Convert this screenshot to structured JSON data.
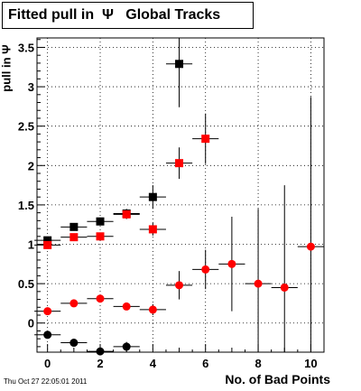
{
  "title": "Fitted pull in  Ψ   Global Tracks",
  "ylabel": "pull in Ψ",
  "xlabel": "No. of Bad Points",
  "timestamp": "Thu Oct 27 22:05:01 2011",
  "chart_data": {
    "type": "scatter",
    "title": "Fitted pull in  Ψ   Global Tracks",
    "xlabel": "No. of Bad Points",
    "ylabel": "pull in Ψ",
    "xlim": [
      -0.4,
      10.5
    ],
    "ylim": [
      -0.37,
      3.62
    ],
    "xticks": [
      0,
      2,
      4,
      6,
      8,
      10
    ],
    "yticks": [
      0,
      0.5,
      1,
      1.5,
      2,
      2.5,
      3,
      3.5
    ],
    "grid": true,
    "series": [
      {
        "marker": "square",
        "color": "#000000",
        "points": [
          {
            "x": 0,
            "y": 1.05,
            "xerr": 0.5,
            "yerr": 0.02
          },
          {
            "x": 1,
            "y": 1.22,
            "xerr": 0.5,
            "yerr": 0.03
          },
          {
            "x": 2,
            "y": 1.29,
            "xerr": 0.5,
            "yerr": 0.04
          },
          {
            "x": 3,
            "y": 1.39,
            "xerr": 0.5,
            "yerr": 0.06
          },
          {
            "x": 4,
            "y": 1.6,
            "xerr": 0.5,
            "yerr": 0.15
          },
          {
            "x": 5,
            "y": 3.29,
            "xerr": 0.5,
            "yerr": 0.55
          }
        ]
      },
      {
        "marker": "square",
        "color": "#ff0000",
        "points": [
          {
            "x": 0,
            "y": 0.99,
            "xerr": 0.5,
            "yerr": 0.02
          },
          {
            "x": 1,
            "y": 1.09,
            "xerr": 0.5,
            "yerr": 0.02
          },
          {
            "x": 2,
            "y": 1.1,
            "xerr": 0.5,
            "yerr": 0.03
          },
          {
            "x": 3,
            "y": 1.38,
            "xerr": 0.5,
            "yerr": 0.06
          },
          {
            "x": 4,
            "y": 1.19,
            "xerr": 0.5,
            "yerr": 0.08
          },
          {
            "x": 5,
            "y": 2.03,
            "xerr": 0.5,
            "yerr": 0.2
          },
          {
            "x": 6,
            "y": 2.34,
            "xerr": 0.5,
            "yerr": 0.32
          }
        ]
      },
      {
        "marker": "circle",
        "color": "#ff0000",
        "points": [
          {
            "x": 0,
            "y": 0.15,
            "xerr": 0.5,
            "yerr": 0.02
          },
          {
            "x": 1,
            "y": 0.25,
            "xerr": 0.5,
            "yerr": 0.03
          },
          {
            "x": 2,
            "y": 0.31,
            "xerr": 0.5,
            "yerr": 0.03
          },
          {
            "x": 3,
            "y": 0.21,
            "xerr": 0.5,
            "yerr": 0.04
          },
          {
            "x": 4,
            "y": 0.17,
            "xerr": 0.5,
            "yerr": 0.07
          },
          {
            "x": 5,
            "y": 0.48,
            "xerr": 0.5,
            "yerr": 0.18
          },
          {
            "x": 6,
            "y": 0.68,
            "xerr": 0.5,
            "yerr": 0.25
          },
          {
            "x": 7,
            "y": 0.75,
            "xerr": 0.5,
            "yerr": 0.6
          },
          {
            "x": 8,
            "y": 0.5,
            "xerr": 0.5,
            "yerr": 0.95
          },
          {
            "x": 9,
            "y": 0.45,
            "xerr": 0.5,
            "yerr": 1.3
          },
          {
            "x": 10,
            "y": 0.97,
            "xerr": 0.5,
            "yerr": 1.9
          }
        ]
      },
      {
        "marker": "circle",
        "color": "#000000",
        "points": [
          {
            "x": 0,
            "y": -0.15,
            "xerr": 0.5,
            "yerr": 0.02
          },
          {
            "x": 1,
            "y": -0.25,
            "xerr": 0.5,
            "yerr": 0.03
          },
          {
            "x": 2,
            "y": -0.36,
            "xerr": 0.5,
            "yerr": 0.04
          },
          {
            "x": 3,
            "y": -0.3,
            "xerr": 0.5,
            "yerr": 0.06
          }
        ]
      }
    ]
  }
}
